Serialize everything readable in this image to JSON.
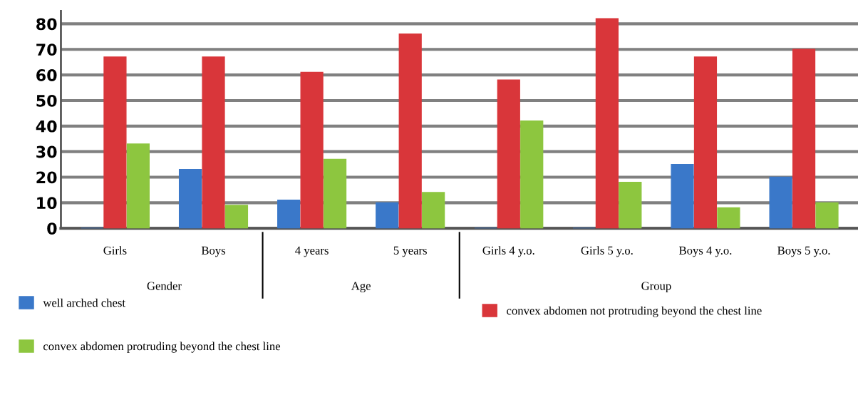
{
  "chart_data": {
    "type": "bar",
    "categories": [
      "Girls",
      "Boys",
      "4 years",
      "5 years",
      "Girls 4 y.o.",
      "Girls 5 y.o.",
      "Boys 4 y.o.",
      "Boys 5 y.o."
    ],
    "series": [
      {
        "name": "well arched chest",
        "color": "#3a78c9",
        "values": [
          0,
          23,
          11,
          10,
          0,
          0,
          25,
          20
        ]
      },
      {
        "name": "convex abdomen not protruding beyond the chest line",
        "color": "#d9363a",
        "values": [
          67,
          67,
          61,
          76,
          58,
          82,
          67,
          70
        ]
      },
      {
        "name": "convex abdomen protruding beyond the chest line",
        "color": "#8dc63f",
        "values": [
          33,
          9,
          27,
          14,
          42,
          18,
          8,
          10
        ]
      }
    ],
    "annotations": [
      "Gender",
      "Age",
      "Group"
    ],
    "ylim": [
      0,
      85
    ],
    "yticks": [
      0,
      10,
      20,
      30,
      40,
      50,
      60,
      70,
      80
    ],
    "grid": "y",
    "legend": "bottom"
  }
}
